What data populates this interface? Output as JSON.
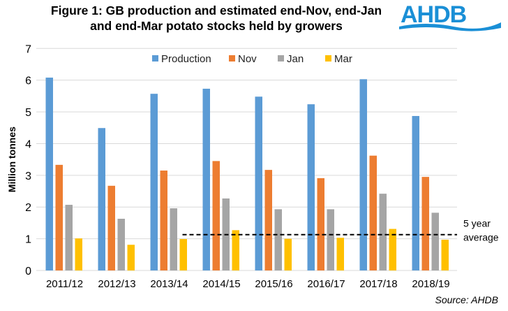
{
  "chart_data": {
    "type": "bar",
    "title": "Figure 1: GB production and estimated end-Nov, end-Jan and end-Mar potato stocks held by growers",
    "title_lines": [
      "Figure 1: GB production and estimated end-Nov, end-Jan",
      "and end-Mar potato stocks held by growers"
    ],
    "ylabel": "Million tonnes",
    "xlabel": "",
    "ylim": [
      0,
      7
    ],
    "yticks": [
      "0",
      "1",
      "2",
      "3",
      "4",
      "5",
      "6",
      "7"
    ],
    "grid": true,
    "legend_position": "top",
    "categories": [
      "2011/12",
      "2012/13",
      "2013/14",
      "2014/15",
      "2015/16",
      "2016/17",
      "2017/18",
      "2018/19"
    ],
    "series": [
      {
        "name": "Production",
        "color": "#5B9BD5",
        "values": [
          6.08,
          4.49,
          5.57,
          5.73,
          5.48,
          5.24,
          6.03,
          4.87
        ]
      },
      {
        "name": "Nov",
        "color": "#ED7D31",
        "values": [
          3.33,
          2.67,
          3.15,
          3.45,
          3.17,
          2.91,
          3.62,
          2.95
        ]
      },
      {
        "name": "Jan",
        "color": "#A5A5A5",
        "values": [
          2.07,
          1.63,
          1.96,
          2.27,
          1.93,
          1.93,
          2.42,
          1.82
        ]
      },
      {
        "name": "Mar",
        "color": "#FFC000",
        "values": [
          1.01,
          0.81,
          0.99,
          1.27,
          1.0,
          1.03,
          1.31,
          0.97
        ]
      }
    ],
    "reference_line": {
      "label_lines": [
        "5 year",
        "average"
      ],
      "value": 1.13,
      "style": "dashed",
      "from_category": "2013/14"
    },
    "source": "Source: AHDB"
  },
  "logo": {
    "text": "AHDB",
    "color": "#1A8FD6"
  }
}
